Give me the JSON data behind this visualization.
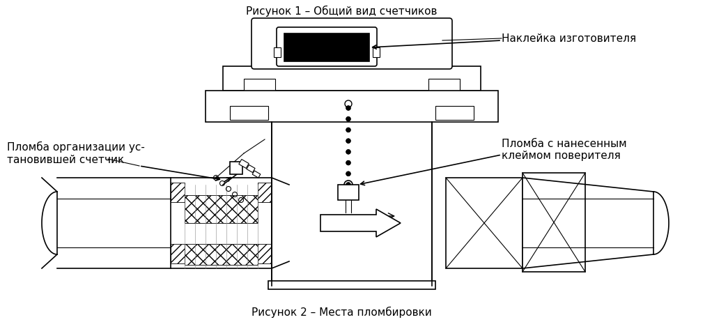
{
  "title1": "Рисунок 1 – Общий вид счетчиков",
  "title2": "Рисунок 2 – Места пломбировки",
  "label_nakleika": "Наклейка изготовителя",
  "label_plomba1": "Пломба организации ус-\nтановившей счетчик",
  "label_plomba2": "Пломба с нанесенным\nклеймом поверителя",
  "bg_color": "#ffffff",
  "line_color": "#000000",
  "fill_light": "#e8e8e8",
  "fill_hatch": "#d0d0d0",
  "font_size": 11,
  "font_size_small": 10
}
